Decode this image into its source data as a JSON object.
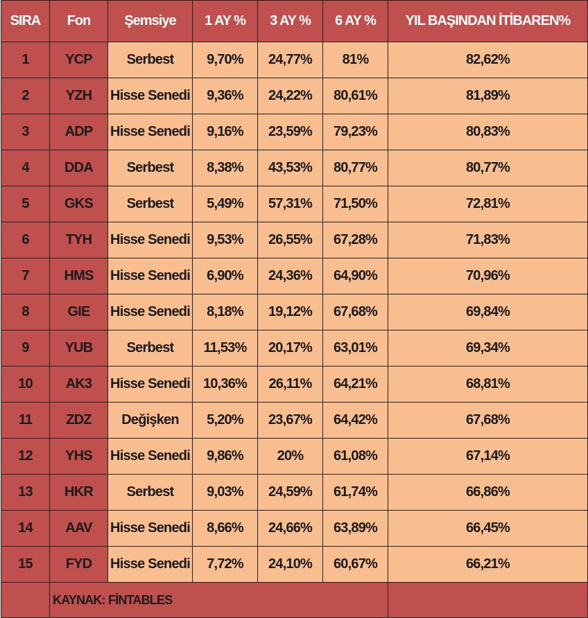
{
  "table": {
    "headers": [
      "SIRA",
      "Fon",
      "Şemsiye",
      "1 AY %",
      "3 AY %",
      "6 AY %",
      "YIL BAŞINDAN İTİBAREN%"
    ],
    "rows": [
      [
        "1",
        "YCP",
        "Serbest",
        "9,70%",
        "24,77%",
        "81%",
        "82,62%"
      ],
      [
        "2",
        "YZH",
        "Hisse Senedi",
        "9,36%",
        "24,22%",
        "80,61%",
        "81,89%"
      ],
      [
        "3",
        "ADP",
        "Hisse Senedi",
        "9,16%",
        "23,59%",
        "79,23%",
        "80,83%"
      ],
      [
        "4",
        "DDA",
        "Serbest",
        "8,38%",
        "43,53%",
        "80,77%",
        "80,77%"
      ],
      [
        "5",
        "GKS",
        "Serbest",
        "5,49%",
        "57,31%",
        "71,50%",
        "72,81%"
      ],
      [
        "6",
        "TYH",
        "Hisse Senedi",
        "9,53%",
        "26,55%",
        "67,28%",
        "71,83%"
      ],
      [
        "7",
        "HMS",
        "Hisse Senedi",
        "6,90%",
        "24,36%",
        "64,90%",
        "70,96%"
      ],
      [
        "8",
        "GIE",
        "Hisse Senedi",
        "8,18%",
        "19,12%",
        "67,68%",
        "69,84%"
      ],
      [
        "9",
        "YUB",
        "Serbest",
        "11,53%",
        "20,17%",
        "63,01%",
        "69,34%"
      ],
      [
        "10",
        "AK3",
        "Hisse Senedi",
        "10,36%",
        "26,11%",
        "64,21%",
        "68,81%"
      ],
      [
        "11",
        "ZDZ",
        "Değişken",
        "5,20%",
        "23,67%",
        "64,42%",
        "67,68%"
      ],
      [
        "12",
        "YHS",
        "Hisse Senedi",
        "9,86%",
        "20%",
        "61,08%",
        "67,14%"
      ],
      [
        "13",
        "HKR",
        "Serbest",
        "9,03%",
        "24,59%",
        "61,74%",
        "66,86%"
      ],
      [
        "14",
        "AAV",
        "Hisse Senedi",
        "8,66%",
        "24,66%",
        "63,89%",
        "66,45%"
      ],
      [
        "15",
        "FYD",
        "Hisse Senedi",
        "7,72%",
        "24,10%",
        "60,67%",
        "66,21%"
      ]
    ],
    "source": "KAYNAK: FİNTABLES"
  },
  "colors": {
    "header_bg": "#c0504d",
    "dark_cell_bg": "#c0504d",
    "light_cell_bg": "#f9be8f"
  }
}
